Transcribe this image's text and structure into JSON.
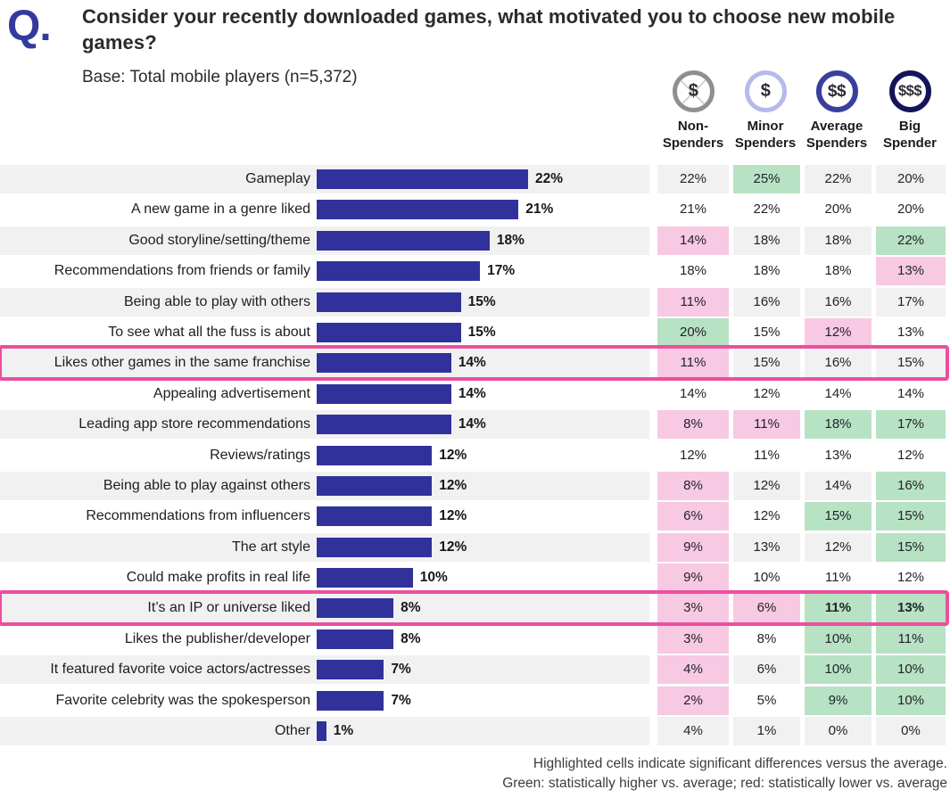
{
  "header": {
    "q_mark": "Q.",
    "question": "Consider your recently downloaded games, what motivated you to choose new mobile games?",
    "base": "Base: Total mobile players (n=5,372)"
  },
  "spenders": [
    {
      "name": "Non-Spenders",
      "label": "Non-\nSpenders",
      "symbol": "$",
      "ring_color": "#8f8f8f",
      "ring_width": 5,
      "crossed": true
    },
    {
      "name": "Minor Spenders",
      "label": "Minor\nSpenders",
      "symbol": "$",
      "ring_color": "#b6baea",
      "ring_width": 5,
      "crossed": false
    },
    {
      "name": "Average Spenders",
      "label": "Average\nSpenders",
      "symbol": "$$",
      "ring_color": "#3a3f9e",
      "ring_width": 6,
      "crossed": false
    },
    {
      "name": "Big Spender",
      "label": "Big\nSpender",
      "symbol": "$$$",
      "ring_color": "#14145a",
      "ring_width": 6,
      "crossed": false
    }
  ],
  "colors": {
    "bar": "#31319b",
    "row_stripe": "#f1f1f2",
    "highlight_green": "#b7e2c4",
    "highlight_pink": "#f7c9e3",
    "row_outline": "#ec4f9e",
    "q_mark": "#333a9e"
  },
  "chart_data": {
    "type": "bar",
    "title": "Consider your recently downloaded games, what motivated you to choose new mobile games?",
    "base_note": "Base: Total mobile players (n=5,372)",
    "value_suffix": "%",
    "xlim": [
      0,
      25
    ],
    "legend_position": "top-right",
    "categories": [
      "Gameplay",
      "A new game in a genre liked",
      "Good storyline/setting/theme",
      "Recommendations from friends or family",
      "Being able to play with others",
      "To see what all the fuss is about",
      "Likes other games in the same franchise",
      "Appealing advertisement",
      "Leading app store recommendations",
      "Reviews/ratings",
      "Being able to play against others",
      "Recommendations from influencers",
      "The art style",
      "Could make profits in real life",
      "It’s an IP or universe liked",
      "Likes the publisher/developer",
      "It featured favorite voice actors/actresses",
      "Favorite celebrity was the spokesperson",
      "Other"
    ],
    "total": [
      22,
      21,
      18,
      17,
      15,
      15,
      14,
      14,
      14,
      12,
      12,
      12,
      12,
      10,
      8,
      8,
      7,
      7,
      1
    ],
    "series": [
      {
        "name": "Non-Spenders",
        "values": [
          22,
          21,
          14,
          18,
          11,
          20,
          11,
          14,
          8,
          12,
          8,
          6,
          9,
          9,
          3,
          3,
          4,
          2,
          4
        ]
      },
      {
        "name": "Minor Spenders",
        "values": [
          25,
          22,
          18,
          18,
          16,
          15,
          15,
          12,
          11,
          11,
          12,
          12,
          13,
          10,
          6,
          8,
          6,
          5,
          1
        ]
      },
      {
        "name": "Average Spenders",
        "values": [
          22,
          20,
          18,
          18,
          16,
          12,
          16,
          14,
          18,
          13,
          14,
          15,
          12,
          11,
          11,
          10,
          10,
          9,
          0
        ]
      },
      {
        "name": "Big Spender",
        "values": [
          20,
          20,
          22,
          13,
          17,
          13,
          15,
          14,
          17,
          12,
          16,
          15,
          15,
          12,
          13,
          11,
          10,
          10,
          0
        ]
      }
    ],
    "highlights": [
      [
        "none",
        "green",
        "none",
        "none"
      ],
      [
        "none",
        "none",
        "none",
        "none"
      ],
      [
        "pink",
        "none",
        "none",
        "green"
      ],
      [
        "none",
        "none",
        "none",
        "pink"
      ],
      [
        "pink",
        "none",
        "none",
        "none"
      ],
      [
        "green",
        "none",
        "pink",
        "none"
      ],
      [
        "pink",
        "none",
        "none",
        "none"
      ],
      [
        "none",
        "none",
        "none",
        "none"
      ],
      [
        "pink",
        "pink",
        "green",
        "green"
      ],
      [
        "none",
        "none",
        "none",
        "none"
      ],
      [
        "pink",
        "none",
        "none",
        "green"
      ],
      [
        "pink",
        "none",
        "green",
        "green"
      ],
      [
        "pink",
        "none",
        "none",
        "green"
      ],
      [
        "pink",
        "none",
        "none",
        "none"
      ],
      [
        "pink",
        "pink",
        "green",
        "green"
      ],
      [
        "pink",
        "none",
        "green",
        "green"
      ],
      [
        "pink",
        "none",
        "green",
        "green"
      ],
      [
        "pink",
        "none",
        "green",
        "green"
      ],
      [
        "none",
        "none",
        "none",
        "none"
      ]
    ],
    "bold_cells": {
      "14": [
        2,
        3
      ]
    },
    "outlined_rows": [
      6,
      14
    ]
  },
  "footer": {
    "line1": "Highlighted cells indicate significant differences versus the average.",
    "line2": "Green: statistically higher vs. average; red: statistically lower vs. average"
  }
}
